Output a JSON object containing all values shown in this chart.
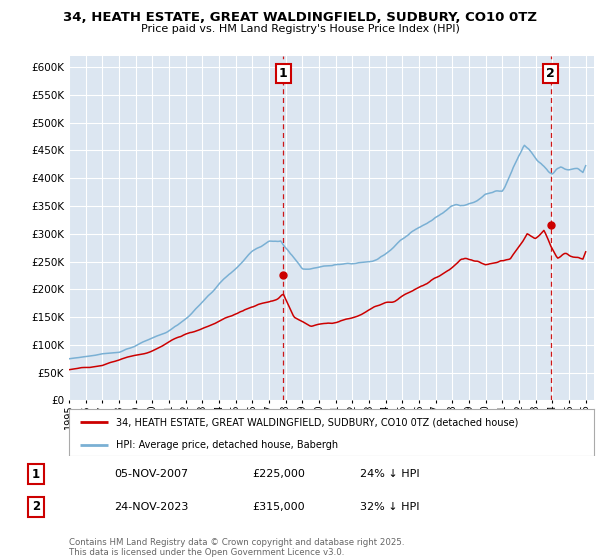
{
  "title": "34, HEATH ESTATE, GREAT WALDINGFIELD, SUDBURY, CO10 0TZ",
  "subtitle": "Price paid vs. HM Land Registry's House Price Index (HPI)",
  "background_color": "#ffffff",
  "plot_bg_color": "#dce6f1",
  "grid_color": "#ffffff",
  "hpi_color": "#7ab0d4",
  "price_color": "#cc0000",
  "vline_color": "#cc0000",
  "ylim": [
    0,
    620000
  ],
  "yticks": [
    0,
    50000,
    100000,
    150000,
    200000,
    250000,
    300000,
    350000,
    400000,
    450000,
    500000,
    550000,
    600000
  ],
  "xmin": 1995.0,
  "xmax": 2026.5,
  "sale1_x": 2007.85,
  "sale1_y": 225000,
  "sale2_x": 2023.9,
  "sale2_y": 315000,
  "annotation1_label": "1",
  "annotation2_label": "2",
  "legend_line1": "34, HEATH ESTATE, GREAT WALDINGFIELD, SUDBURY, CO10 0TZ (detached house)",
  "legend_line2": "HPI: Average price, detached house, Babergh",
  "info1_num": "1",
  "info1_date": "05-NOV-2007",
  "info1_price": "£225,000",
  "info1_hpi": "24% ↓ HPI",
  "info2_num": "2",
  "info2_date": "24-NOV-2023",
  "info2_price": "£315,000",
  "info2_hpi": "32% ↓ HPI",
  "copyright_text": "Contains HM Land Registry data © Crown copyright and database right 2025.\nThis data is licensed under the Open Government Licence v3.0."
}
